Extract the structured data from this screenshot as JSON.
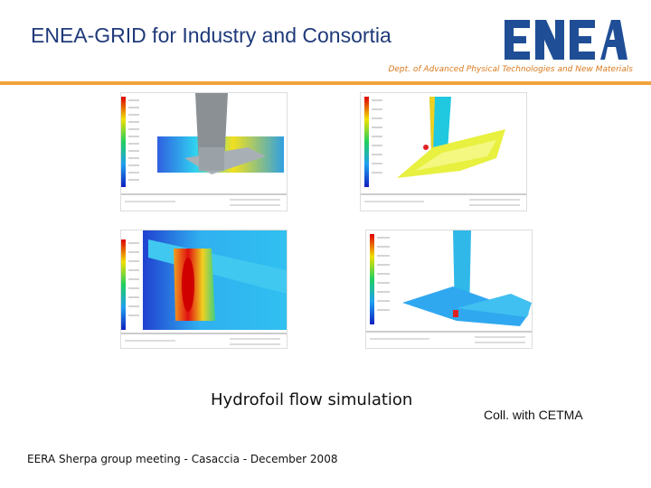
{
  "header": {
    "title": "ENEA-GRID for Industry and Consortia",
    "logo_text": "ENEA",
    "department": "Dept. of Advanced Physical Technologies and New Materials",
    "accent_color": "#f0a33b",
    "logo_color": "#1f4e96"
  },
  "main": {
    "panels": [
      {
        "name": "panel-top-left"
      },
      {
        "name": "panel-top-right"
      },
      {
        "name": "panel-bottom-left"
      },
      {
        "name": "panel-bottom-right"
      }
    ],
    "caption": "Hydrofoil flow simulation",
    "collaboration": "Coll. with CETMA"
  },
  "footer": {
    "text": "EERA Sherpa group meeting - Casaccia - December 2008"
  }
}
